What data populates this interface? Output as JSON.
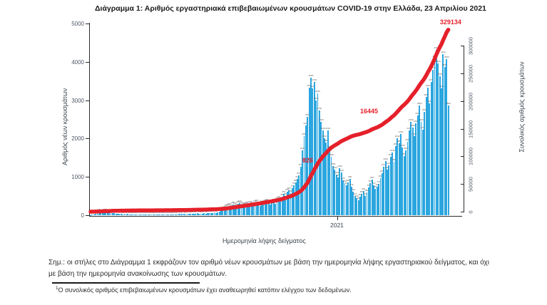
{
  "title": "Διάγραμμα 1: Αριθμός εργαστηριακά επιβεβαιωμένων κρουσμάτων COVID-19 στην Ελλάδα, 23 Απριλίου 2021",
  "colors": {
    "bar": "#2ba6df",
    "line": "#e5202a",
    "annotation": "#e5202a",
    "axis": "#2b2b2b",
    "bar_label": "#5a5a5a"
  },
  "chart_data": {
    "type": "bar",
    "title": "Διάγραμμα 1: Αριθμός εργαστηριακά επιβεβαιωμένων κρουσμάτων COVID-19 στην Ελλάδα, 23 Απριλίου 2021",
    "xlabel": "Ημερομηνία λήψης δείγματος",
    "x_tick_labels": [
      "2021"
    ],
    "left_axis": {
      "label": "Αριθμός νέων κρουσμάτων",
      "ticks": [
        0,
        1000,
        2000,
        3000,
        4000,
        5000
      ],
      "ylim": [
        0,
        5000
      ]
    },
    "right_axis": {
      "label": "Συνολικός αριθμός κρουσμάτων",
      "ticks": [
        0,
        50000,
        100000,
        150000,
        200000,
        250000,
        300000
      ],
      "ylim": [
        0,
        300000
      ]
    },
    "series": [
      {
        "name": "daily-new-cases",
        "type": "bar",
        "values": [
          5,
          10,
          20,
          35,
          60,
          95,
          70,
          80,
          100,
          85,
          60,
          70,
          55,
          65,
          50,
          40,
          45,
          35,
          30,
          25,
          35,
          20,
          30,
          25,
          20,
          15,
          20,
          25,
          15,
          20,
          15,
          10,
          15,
          20,
          15,
          10,
          15,
          10,
          15,
          20,
          15,
          10,
          10,
          15,
          10,
          15,
          10,
          10,
          20,
          15,
          25,
          20,
          30,
          25,
          35,
          30,
          25,
          35,
          40,
          30,
          35,
          45,
          40,
          50,
          35,
          30,
          40,
          50,
          45,
          55,
          65,
          50,
          60,
          70,
          65,
          80,
          90,
          110,
          150,
          170,
          200,
          230,
          250,
          210,
          280,
          260,
          230,
          290,
          310,
          270,
          240,
          260,
          280,
          250,
          300,
          270,
          240,
          310,
          330,
          280,
          250,
          310,
          290,
          340,
          360,
          310,
          280,
          330,
          350,
          300,
          390,
          420,
          390,
          480,
          550,
          510,
          620,
          660,
          580,
          710,
          790,
          860,
          940,
          1040,
          1260,
          1690,
          2060,
          2350,
          2560,
          3320,
          3590,
          3310,
          3470,
          2990,
          3180,
          2740,
          2430,
          2210,
          2010,
          1890,
          2210,
          1720,
          1530,
          1280,
          1190,
          1060,
          980,
          1230,
          1110,
          920,
          840,
          790,
          860,
          950,
          740,
          620,
          510,
          440,
          390,
          480,
          560,
          640,
          510,
          590,
          720,
          840,
          930,
          790,
          680,
          740,
          810,
          960,
          1090,
          1260,
          1410,
          1190,
          1310,
          1520,
          1640,
          1390,
          1810,
          2010,
          1880,
          2120,
          1760,
          1540,
          1690,
          1920,
          2210,
          2430,
          2280,
          2060,
          2390,
          2610,
          2860,
          2440,
          2230,
          2690,
          3080,
          3320,
          2910,
          3470,
          3790,
          4090,
          4310,
          3960,
          3630,
          3310,
          4210,
          3860,
          4080,
          2860
        ]
      },
      {
        "name": "cumulative-cases",
        "type": "line",
        "final_value": 329134
      }
    ],
    "annotations": [
      {
        "text": "826",
        "fx": 0.591,
        "fy": 0.695
      },
      {
        "text": "16445",
        "fx": 0.752,
        "fy": 0.441
      },
      {
        "text": "329134",
        "fx": 0.974,
        "fy": -0.018
      }
    ],
    "legend": "none",
    "grid": false
  },
  "note": {
    "line1": "Σημ.: οι στήλες στο Διάγραμμα 1 εκφράζουν τον αριθμό νέων κρουσμάτων με βάση την ημερομηνία λήψης εργαστηριακού δείγματος, και όχι",
    "line2": "με βάση την ημερομηνία ανακοίνωσης των κρουσμάτων."
  },
  "footnote": {
    "marker": "1",
    "text": "Ο συνολικός αριθμός επιβεβαιωμένων κρουσμάτων έχει αναθεωρηθεί κατόπιν ελέγχου των δεδομένων."
  }
}
